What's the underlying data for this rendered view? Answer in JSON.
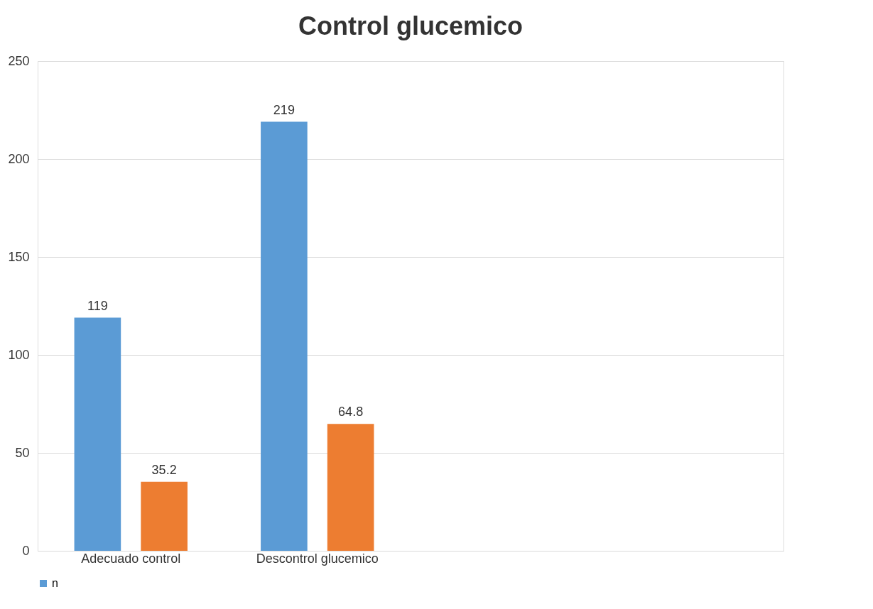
{
  "chart_data": {
    "type": "bar",
    "title": "Control glucemico",
    "categories": [
      "Adecuado control",
      "Descontrol glucemico",
      null,
      null
    ],
    "series": [
      {
        "name": "n",
        "color": "#5b9bd5",
        "values": [
          119,
          219,
          null,
          null
        ]
      },
      {
        "color": "#ed7d31",
        "values": [
          35.2,
          64.8,
          null,
          null
        ]
      }
    ],
    "ylim": [
      0,
      250
    ],
    "yticks": [
      0,
      50,
      100,
      150,
      200,
      250
    ],
    "grid": "y",
    "data_labels": true,
    "legend": "bottom"
  }
}
